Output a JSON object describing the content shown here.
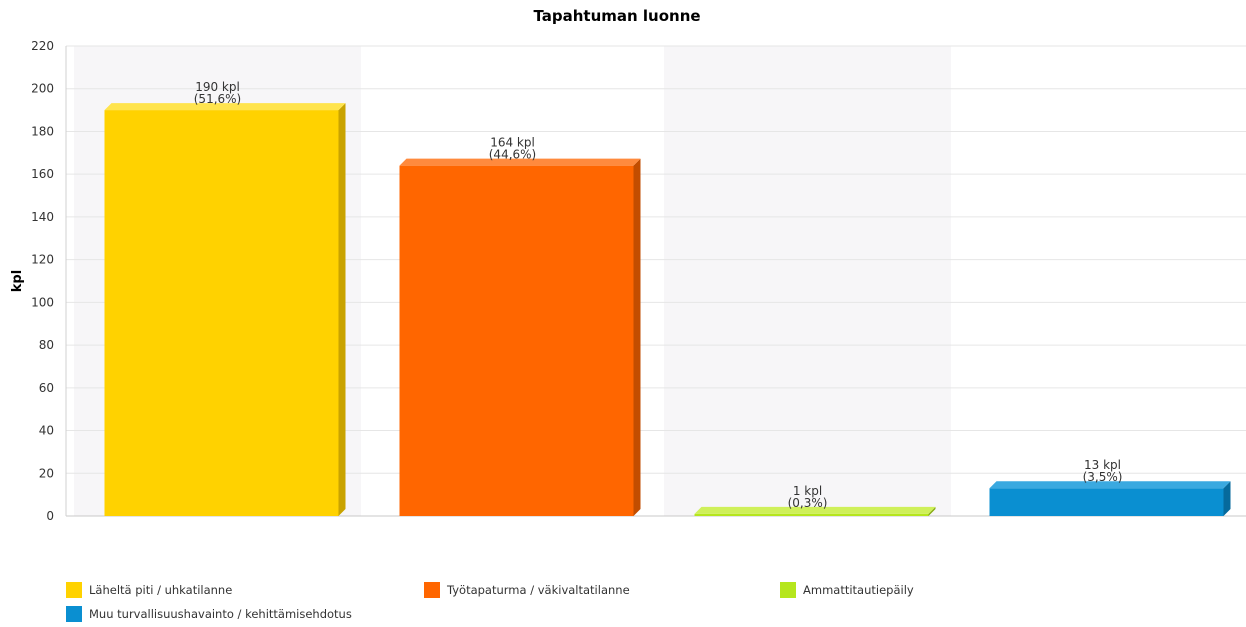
{
  "chart_data": {
    "type": "bar",
    "title": "Tapahtuman luonne",
    "ylabel": "kpl",
    "xlabel": "",
    "ylim": [
      0,
      220
    ],
    "yticks": [
      "0",
      "20",
      "40",
      "60",
      "80",
      "100",
      "120",
      "140",
      "160",
      "180",
      "200",
      "220"
    ],
    "grid": true,
    "legend_placement": "bottom",
    "categories": [
      "Läheltä piti / uhkatilanne",
      "Työtapaturma / väkivaltatilanne",
      "Ammattitautiepäily",
      "Muu turvallisuushavainto / kehittämisehdotus"
    ],
    "values": [
      190,
      164,
      1,
      13
    ],
    "value_labels": [
      "190 kpl",
      "164 kpl",
      "1 kpl",
      "13 kpl"
    ],
    "percent_labels": [
      "(51,6%)",
      "(44,6%)",
      "(0,3%)",
      "(3,5%)"
    ],
    "colors": [
      "#FFD200",
      "#FF6600",
      "#B5E61D",
      "#0A8FD1"
    ],
    "side_colors": [
      "#C9A300",
      "#C24D00",
      "#86AA14",
      "#066A9C"
    ],
    "top_colors": [
      "#FFE44D",
      "#FF8A3D",
      "#CFF05A",
      "#3AA9E0"
    ]
  },
  "legend": {
    "items": [
      {
        "label": "Läheltä piti / uhkatilanne",
        "color": "#FFD200"
      },
      {
        "label": "Työtapaturma / väkivaltatilanne",
        "color": "#FF6600"
      },
      {
        "label": "Ammattitautiepäily",
        "color": "#B5E61D"
      },
      {
        "label": "Muu turvallisuushavainto / kehittämisehdotus",
        "color": "#0A8FD1"
      }
    ]
  }
}
